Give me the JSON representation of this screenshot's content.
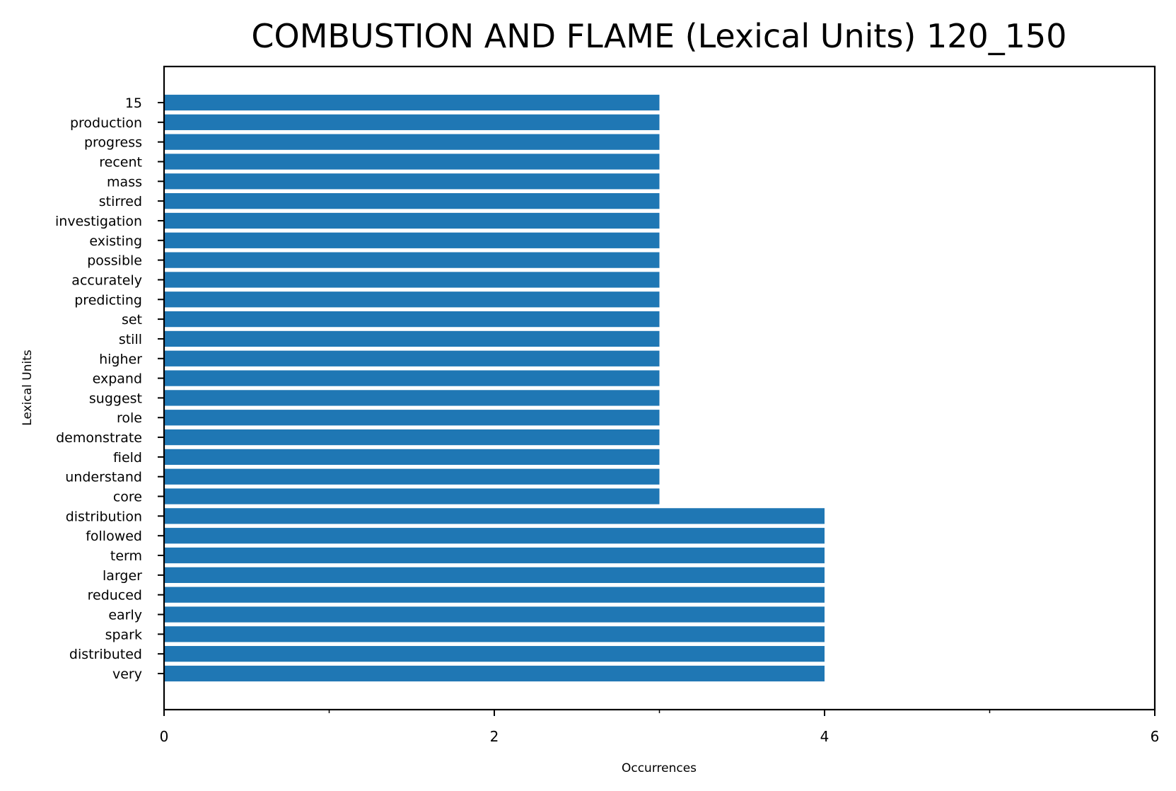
{
  "chart_data": {
    "type": "bar",
    "orientation": "horizontal",
    "title": "COMBUSTION AND FLAME (Lexical Units) 120_150",
    "xlabel": "Occurrences",
    "ylabel": "Lexical Units",
    "xlim": [
      0,
      6
    ],
    "x_ticks": [
      0,
      2,
      4,
      6
    ],
    "x_minor_ticks": [
      1,
      3,
      5
    ],
    "grid": false,
    "bar_color": "#1f77b4",
    "categories": [
      "very",
      "distributed",
      "spark",
      "early",
      "reduced",
      "larger",
      "term",
      "followed",
      "distribution",
      "core",
      "understand",
      "field",
      "demonstrate",
      "role",
      "suggest",
      "expand",
      "higher",
      "still",
      "set",
      "predicting",
      "accurately",
      "possible",
      "existing",
      "investigation",
      "stirred",
      "mass",
      "recent",
      "progress",
      "production",
      "15"
    ],
    "values": [
      4,
      4,
      4,
      4,
      4,
      4,
      4,
      4,
      4,
      3,
      3,
      3,
      3,
      3,
      3,
      3,
      3,
      3,
      3,
      3,
      3,
      3,
      3,
      3,
      3,
      3,
      3,
      3,
      3,
      3
    ]
  }
}
